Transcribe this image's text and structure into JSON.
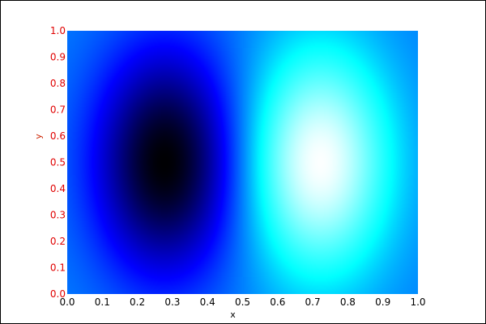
{
  "chart_data": {
    "type": "heatmap",
    "xlabel": "x",
    "ylabel": "y",
    "xlim": [
      0,
      1
    ],
    "ylim": [
      0,
      1
    ],
    "xticks": [
      "0.0",
      "0.1",
      "0.2",
      "0.3",
      "0.4",
      "0.5",
      "0.6",
      "0.7",
      "0.8",
      "0.9",
      "1.0"
    ],
    "yticks": [
      "0.0",
      "0.1",
      "0.2",
      "0.3",
      "0.4",
      "0.5",
      "0.6",
      "0.7",
      "0.8",
      "0.9",
      "1.0"
    ],
    "colormap": [
      "#000000",
      "#0000ff",
      "#00ffff",
      "#ffffff"
    ],
    "extrema": [
      {
        "kind": "min",
        "x": 0.28,
        "y": 0.5
      },
      {
        "kind": "max",
        "x": 0.72,
        "y": 0.5
      }
    ],
    "grid": false,
    "legend": "none",
    "colors": {
      "axis_text": "#e00000",
      "axis_title": "#cc2200",
      "frame": "#000000"
    }
  }
}
